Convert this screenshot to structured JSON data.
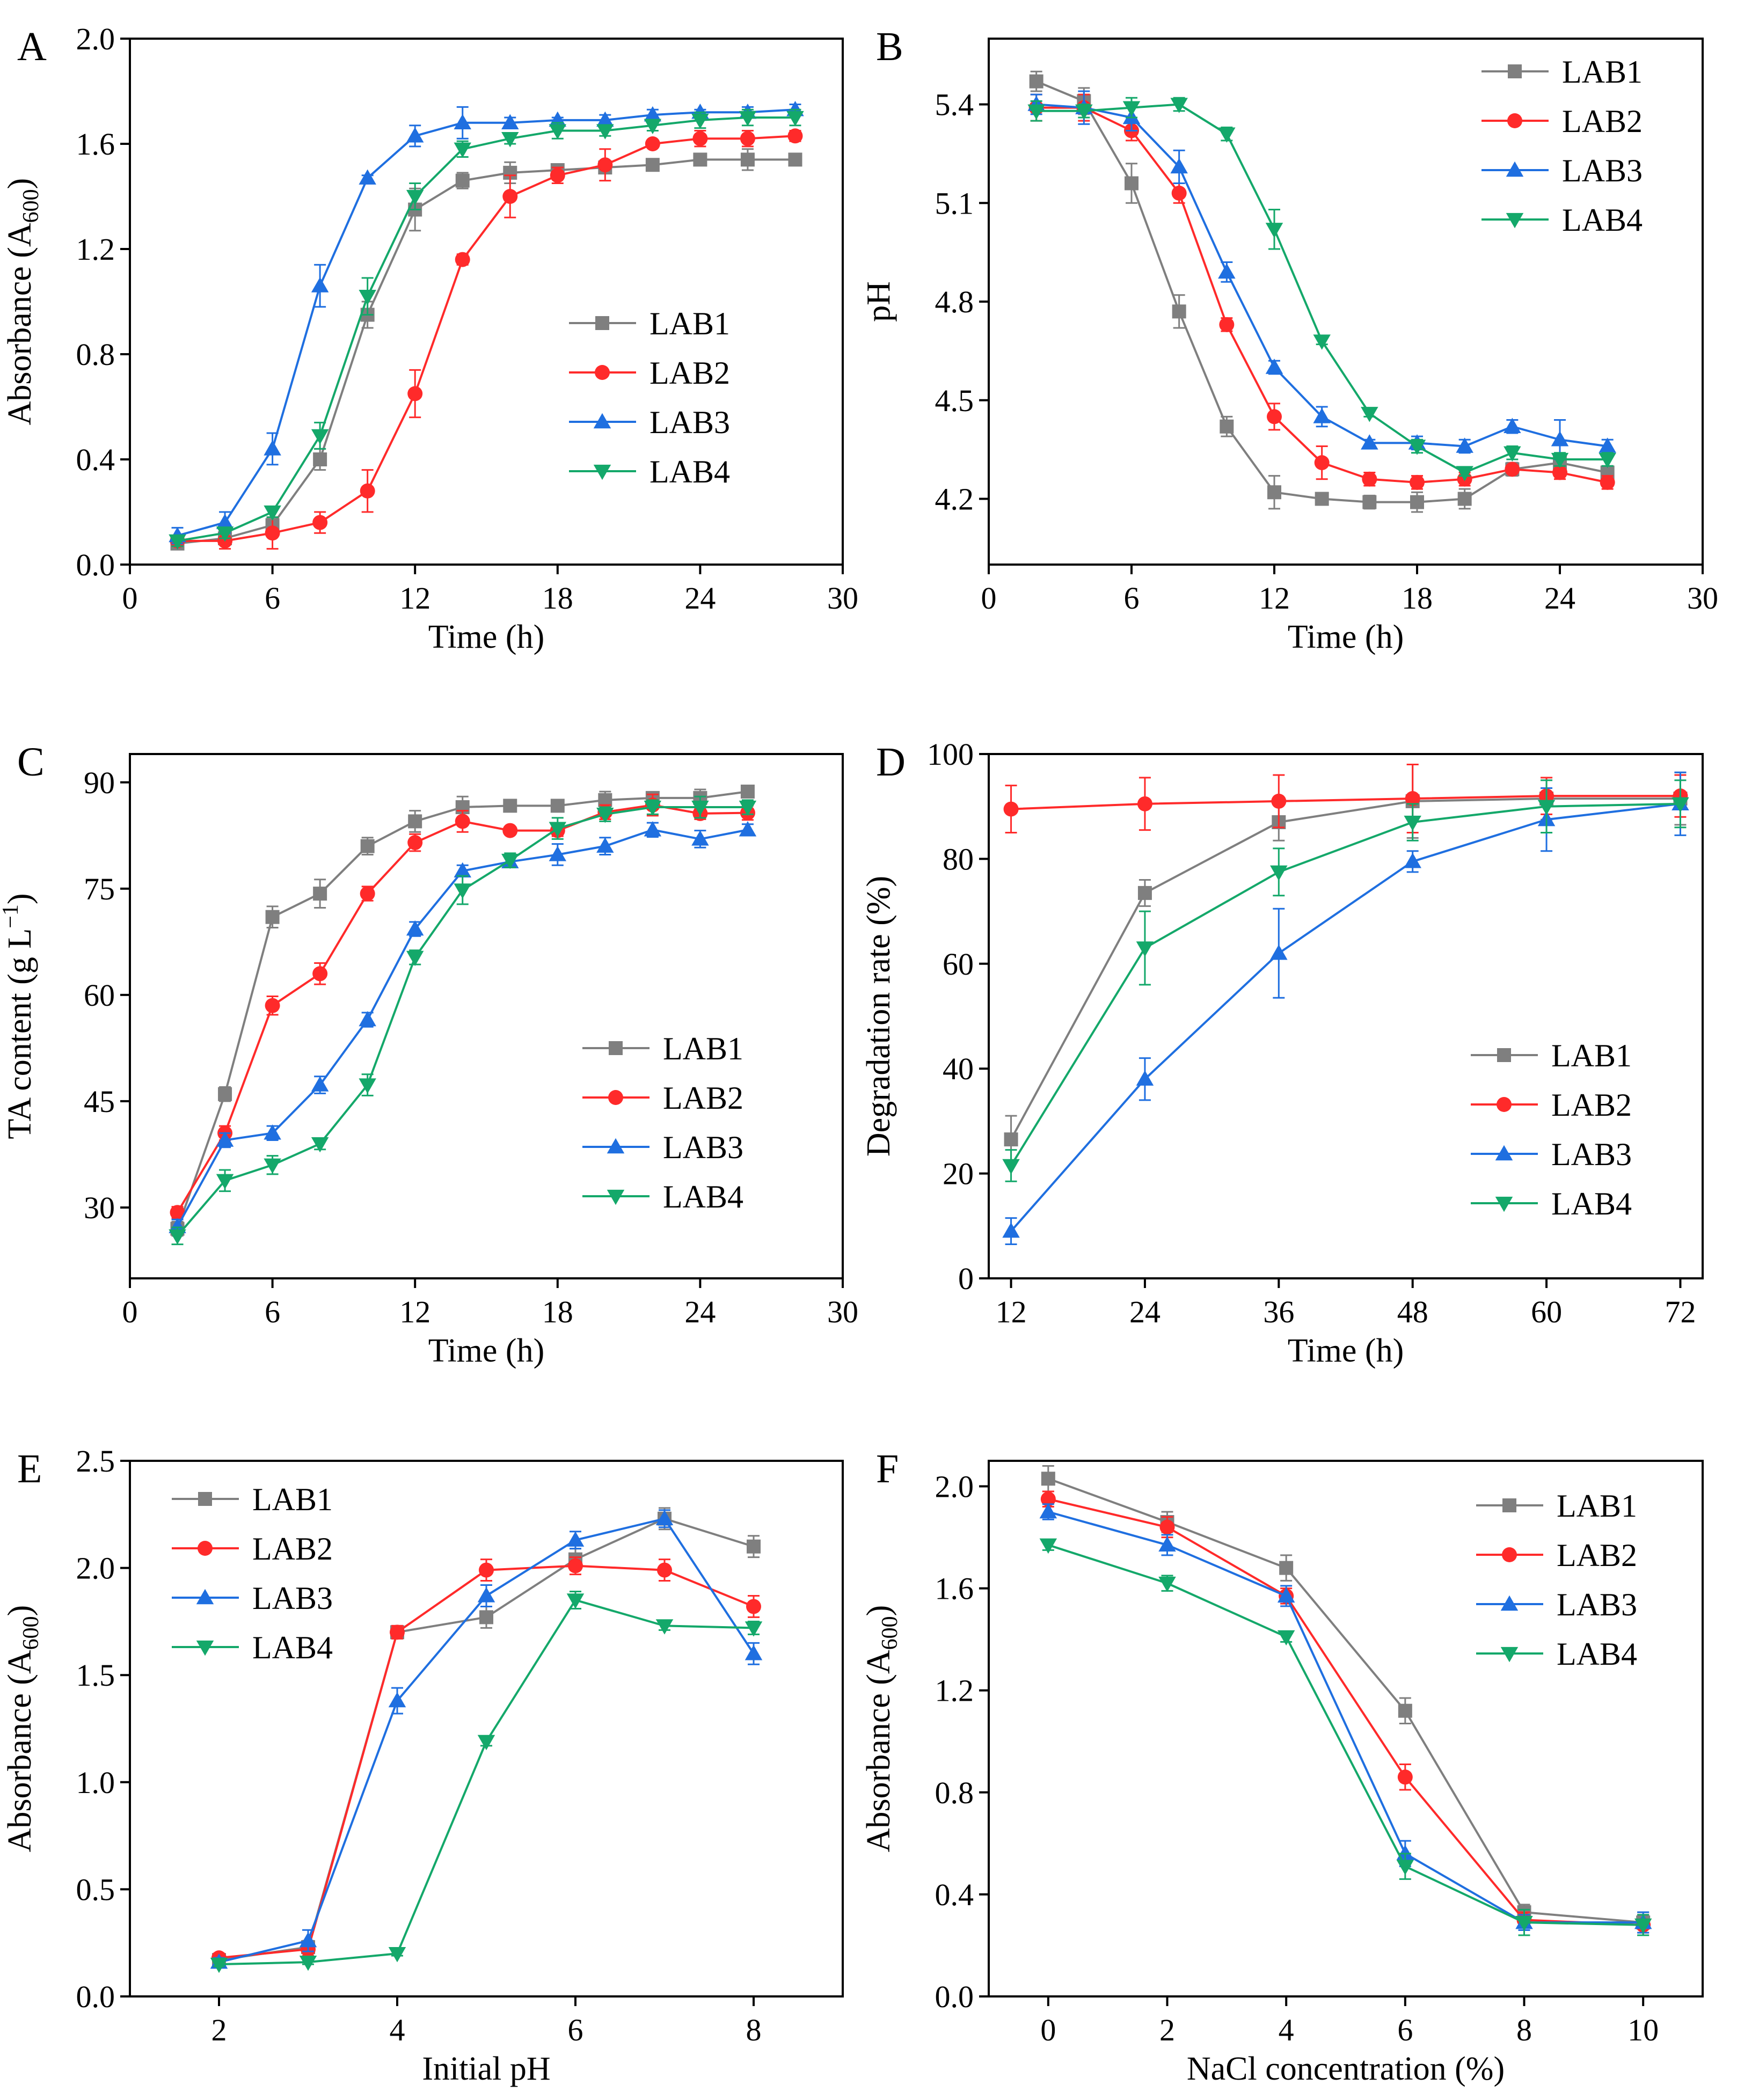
{
  "colors": {
    "LAB1": "#7f7f7f",
    "LAB2": "#ff2a2a",
    "LAB3": "#1f6fe0",
    "LAB4": "#14a86a"
  },
  "markers": {
    "LAB1": "square",
    "LAB2": "circle",
    "LAB3": "triangle-up",
    "LAB4": "triangle-down"
  },
  "chart_data": [
    {
      "panel": "A",
      "type": "line",
      "title": "",
      "xlabel": "Time (h)",
      "ylabel": "Absorbance (A",
      "ylabel_sub": "600",
      "ylabel_close": ")",
      "xlim": [
        0,
        30
      ],
      "ylim": [
        0.0,
        2.0
      ],
      "xticks": [
        0,
        6,
        12,
        18,
        24,
        30
      ],
      "yticks": [
        0.0,
        0.4,
        0.8,
        1.2,
        1.6,
        2.0
      ],
      "ytick_decimals": 1,
      "legend_position": "center-right",
      "x": [
        2,
        4,
        6,
        8,
        10,
        12,
        14,
        16,
        18,
        20,
        22,
        24,
        26,
        28
      ],
      "series": [
        {
          "name": "LAB1",
          "values": [
            0.08,
            0.1,
            0.15,
            0.4,
            0.95,
            1.35,
            1.46,
            1.49,
            1.5,
            1.51,
            1.52,
            1.54,
            1.54,
            1.54
          ],
          "errors": [
            0.02,
            0.02,
            0.02,
            0.04,
            0.05,
            0.08,
            0.03,
            0.04,
            0.02,
            0.02,
            0.02,
            0.02,
            0.04,
            0.02
          ]
        },
        {
          "name": "LAB2",
          "values": [
            0.09,
            0.09,
            0.12,
            0.16,
            0.28,
            0.65,
            1.16,
            1.4,
            1.48,
            1.52,
            1.6,
            1.62,
            1.62,
            1.63
          ],
          "errors": [
            0.02,
            0.03,
            0.06,
            0.04,
            0.08,
            0.09,
            0.02,
            0.08,
            0.03,
            0.06,
            0.01,
            0.03,
            0.03,
            0.02
          ]
        },
        {
          "name": "LAB3",
          "values": [
            0.11,
            0.16,
            0.44,
            1.06,
            1.47,
            1.63,
            1.68,
            1.68,
            1.69,
            1.69,
            1.71,
            1.72,
            1.72,
            1.73
          ],
          "errors": [
            0.03,
            0.04,
            0.06,
            0.08,
            0.01,
            0.04,
            0.06,
            0.02,
            0.01,
            0.02,
            0.02,
            0.01,
            0.02,
            0.02
          ]
        },
        {
          "name": "LAB4",
          "values": [
            0.09,
            0.12,
            0.2,
            0.49,
            1.02,
            1.4,
            1.58,
            1.62,
            1.65,
            1.65,
            1.67,
            1.69,
            1.7,
            1.7
          ],
          "errors": [
            0.02,
            0.02,
            0.02,
            0.05,
            0.07,
            0.05,
            0.03,
            0.02,
            0.03,
            0.02,
            0.02,
            0.03,
            0.03,
            0.03
          ]
        }
      ]
    },
    {
      "panel": "B",
      "type": "line",
      "title": "",
      "xlabel": "Time (h)",
      "ylabel": "pH",
      "ylabel_sub": "",
      "ylabel_close": "",
      "xlim": [
        0,
        30
      ],
      "ylim": [
        4.0,
        5.6
      ],
      "xticks": [
        0,
        6,
        12,
        18,
        24,
        30
      ],
      "yticks": [
        4.2,
        4.5,
        4.8,
        5.1,
        5.4
      ],
      "ytick_decimals": 1,
      "legend_position": "top-right",
      "x": [
        2,
        4,
        6,
        8,
        10,
        12,
        14,
        16,
        18,
        20,
        22,
        24,
        26
      ],
      "series": [
        {
          "name": "LAB1",
          "values": [
            5.47,
            5.41,
            5.16,
            4.77,
            4.42,
            4.22,
            4.2,
            4.19,
            4.19,
            4.2,
            4.29,
            4.31,
            4.28
          ],
          "errors": [
            0.03,
            0.04,
            0.06,
            0.05,
            0.03,
            0.05,
            0.01,
            0.02,
            0.03,
            0.03,
            0.02,
            0.02,
            0.02
          ]
        },
        {
          "name": "LAB2",
          "values": [
            5.39,
            5.39,
            5.32,
            5.13,
            4.73,
            4.45,
            4.31,
            4.26,
            4.25,
            4.26,
            4.29,
            4.28,
            4.25
          ],
          "errors": [
            0.04,
            0.04,
            0.03,
            0.03,
            0.02,
            0.04,
            0.05,
            0.02,
            0.02,
            0.02,
            0.01,
            0.02,
            0.02
          ]
        },
        {
          "name": "LAB3",
          "values": [
            5.4,
            5.39,
            5.36,
            5.21,
            4.89,
            4.6,
            4.45,
            4.37,
            4.37,
            4.36,
            4.42,
            4.38,
            4.36
          ],
          "errors": [
            0.03,
            0.05,
            0.04,
            0.05,
            0.03,
            0.02,
            0.03,
            0.01,
            0.02,
            0.02,
            0.02,
            0.06,
            0.02
          ]
        },
        {
          "name": "LAB4",
          "values": [
            5.38,
            5.38,
            5.39,
            5.4,
            5.31,
            5.02,
            4.68,
            4.46,
            4.36,
            4.28,
            4.34,
            4.32,
            4.32
          ],
          "errors": [
            0.03,
            0.02,
            0.03,
            0.02,
            0.02,
            0.06,
            0.01,
            0.01,
            0.02,
            0.01,
            0.02,
            0.02,
            0.02
          ]
        }
      ]
    },
    {
      "panel": "C",
      "type": "line",
      "title": "",
      "xlabel": "Time (h)",
      "ylabel": "TA content (g L",
      "ylabel_sup": "−1",
      "ylabel_close": ")",
      "xlim": [
        0,
        30
      ],
      "ylim": [
        20,
        94
      ],
      "xticks": [
        0,
        6,
        12,
        18,
        24,
        30
      ],
      "yticks": [
        30,
        45,
        60,
        75,
        90
      ],
      "ytick_decimals": 0,
      "legend_position": "center-right",
      "x": [
        2,
        4,
        6,
        8,
        10,
        12,
        14,
        16,
        18,
        20,
        22,
        24,
        26
      ],
      "series": [
        {
          "name": "LAB1",
          "values": [
            27.0,
            46.0,
            71.0,
            74.3,
            81.0,
            84.5,
            86.5,
            86.7,
            86.7,
            87.5,
            87.8,
            87.8,
            88.7
          ],
          "errors": [
            1.0,
            1.0,
            1.5,
            2.0,
            1.2,
            1.5,
            1.5,
            0.5,
            0.5,
            1.2,
            0.8,
            1.2,
            0.8
          ]
        },
        {
          "name": "LAB2",
          "values": [
            29.3,
            40.5,
            58.5,
            63.0,
            74.3,
            81.5,
            84.5,
            83.2,
            83.2,
            85.8,
            86.8,
            85.6,
            85.7
          ],
          "errors": [
            0.8,
            1.0,
            1.3,
            1.5,
            1.0,
            1.2,
            1.5,
            0.5,
            0.8,
            1.0,
            1.5,
            0.8,
            1.0
          ]
        },
        {
          "name": "LAB3",
          "values": [
            27.3,
            39.5,
            40.5,
            47.3,
            56.5,
            69.3,
            77.5,
            78.8,
            79.8,
            81.0,
            83.3,
            82.0,
            83.3
          ],
          "errors": [
            1.0,
            1.0,
            1.0,
            1.2,
            1.0,
            1.0,
            0.8,
            0.8,
            1.5,
            1.2,
            1.0,
            1.2,
            0.8
          ]
        },
        {
          "name": "LAB4",
          "values": [
            26.0,
            33.8,
            36.0,
            39.0,
            47.3,
            65.3,
            74.8,
            79.0,
            83.5,
            85.5,
            86.5,
            86.5,
            86.5
          ],
          "errors": [
            1.2,
            1.5,
            1.3,
            0.8,
            1.5,
            1.0,
            2.0,
            1.0,
            1.5,
            1.0,
            1.0,
            1.5,
            1.0
          ]
        }
      ]
    },
    {
      "panel": "D",
      "type": "line",
      "title": "",
      "xlabel": "Time (h)",
      "ylabel": "Degradation rate (%)",
      "ylabel_sub": "",
      "ylabel_close": "",
      "xlim": [
        10,
        74
      ],
      "ylim": [
        0,
        100
      ],
      "xticks": [
        12,
        24,
        36,
        48,
        60,
        72
      ],
      "yticks": [
        0,
        20,
        40,
        60,
        80,
        100
      ],
      "ytick_decimals": 0,
      "legend_position": "bottom-right",
      "x": [
        12,
        24,
        36,
        48,
        60,
        72
      ],
      "series": [
        {
          "name": "LAB1",
          "values": [
            26.5,
            73.5,
            87.0,
            91.0,
            91.5,
            91.5
          ],
          "errors": [
            4.5,
            2.5,
            3.5,
            7.0,
            4.0,
            5.0
          ]
        },
        {
          "name": "LAB2",
          "values": [
            89.5,
            90.5,
            91.0,
            91.5,
            92.0,
            92.0
          ],
          "errors": [
            4.5,
            5.0,
            5.0,
            6.5,
            3.5,
            4.0
          ]
        },
        {
          "name": "LAB3",
          "values": [
            9.0,
            38.0,
            62.0,
            79.5,
            87.5,
            90.5
          ],
          "errors": [
            2.5,
            4.0,
            8.5,
            2.0,
            6.0,
            6.0
          ]
        },
        {
          "name": "LAB4",
          "values": [
            21.5,
            63.0,
            77.5,
            87.0,
            90.0,
            90.5
          ],
          "errors": [
            3.0,
            7.0,
            4.5,
            3.5,
            5.0,
            4.5
          ]
        }
      ]
    },
    {
      "panel": "E",
      "type": "line",
      "title": "",
      "xlabel": "Initial pH",
      "ylabel": "Absorbance (A",
      "ylabel_sub": "600",
      "ylabel_close": ")",
      "xlim": [
        1,
        9
      ],
      "ylim": [
        0.0,
        2.5
      ],
      "xticks": [
        2,
        4,
        6,
        8
      ],
      "yticks": [
        0.0,
        0.5,
        1.0,
        1.5,
        2.0,
        2.5
      ],
      "ytick_decimals": 1,
      "legend_position": "top-left",
      "x": [
        2,
        3,
        4,
        5,
        6,
        7,
        8
      ],
      "series": [
        {
          "name": "LAB1",
          "values": [
            0.17,
            0.23,
            1.7,
            1.77,
            2.04,
            2.23,
            2.1
          ],
          "errors": [
            0.02,
            0.03,
            0.03,
            0.05,
            0.05,
            0.05,
            0.05
          ]
        },
        {
          "name": "LAB2",
          "values": [
            0.18,
            0.22,
            1.7,
            1.99,
            2.01,
            1.99,
            1.82
          ],
          "errors": [
            0.02,
            0.03,
            0.03,
            0.05,
            0.04,
            0.05,
            0.05
          ]
        },
        {
          "name": "LAB3",
          "values": [
            0.16,
            0.26,
            1.38,
            1.87,
            2.13,
            2.23,
            1.6
          ],
          "errors": [
            0.02,
            0.05,
            0.06,
            0.05,
            0.04,
            0.04,
            0.05
          ]
        },
        {
          "name": "LAB4",
          "values": [
            0.15,
            0.16,
            0.2,
            1.19,
            1.85,
            1.73,
            1.72
          ],
          "errors": [
            0.01,
            0.01,
            0.01,
            0.02,
            0.04,
            0.02,
            0.03
          ]
        }
      ]
    },
    {
      "panel": "F",
      "type": "line",
      "title": "",
      "xlabel": "NaCl concentration (%)",
      "ylabel": "Absorbance (A",
      "ylabel_sub": "600",
      "ylabel_close": ")",
      "xlim": [
        -1,
        11
      ],
      "ylim": [
        0.0,
        2.1
      ],
      "xticks": [
        0,
        2,
        4,
        6,
        8,
        10
      ],
      "yticks": [
        0.0,
        0.4,
        0.8,
        1.2,
        1.6,
        2.0
      ],
      "ytick_decimals": 1,
      "legend_position": "top-right",
      "x": [
        0,
        2,
        4,
        6,
        8,
        10
      ],
      "series": [
        {
          "name": "LAB1",
          "values": [
            2.03,
            1.86,
            1.68,
            1.12,
            0.33,
            0.29
          ],
          "errors": [
            0.05,
            0.04,
            0.05,
            0.05,
            0.03,
            0.04
          ]
        },
        {
          "name": "LAB2",
          "values": [
            1.95,
            1.84,
            1.57,
            0.86,
            0.3,
            0.28
          ],
          "errors": [
            0.03,
            0.04,
            0.03,
            0.05,
            0.03,
            0.04
          ]
        },
        {
          "name": "LAB3",
          "values": [
            1.9,
            1.77,
            1.57,
            0.56,
            0.29,
            0.29
          ],
          "errors": [
            0.03,
            0.04,
            0.04,
            0.05,
            0.03,
            0.04
          ]
        },
        {
          "name": "LAB4",
          "values": [
            1.77,
            1.62,
            1.41,
            0.51,
            0.29,
            0.28
          ],
          "errors": [
            0.02,
            0.03,
            0.02,
            0.05,
            0.05,
            0.04
          ]
        }
      ]
    }
  ]
}
